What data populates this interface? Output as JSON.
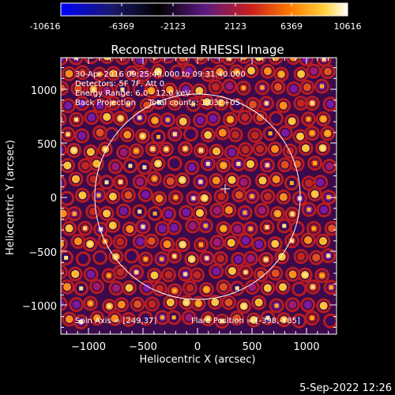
{
  "colorbar": {
    "ticks": [
      "-10616",
      "-6369",
      "-2123",
      "2123",
      "6369",
      "10616"
    ],
    "colors": [
      "#0000ff",
      "#1a1a6a",
      "#000000",
      "#5a1a80",
      "#c81e1e",
      "#ff7a00",
      "#ffd23c",
      "#ffffff"
    ]
  },
  "image": {
    "title": "Reconstructed RHESSI Image",
    "info_lines": [
      "30-Apr-2016 09:25:40.000 to 09:31:40.000",
      "Detectors: 5F 7F, Att 0",
      "Energy Range: 6.0 - 12.0 keV",
      "Back Projection     Total counts: 1.03E+05"
    ],
    "spin_axis": "Spin Axis = [249,37]",
    "flare_position": "Flare Position = [-398,-785]",
    "timestamp": "5-Sep-2022 12:26"
  },
  "chart_data": {
    "type": "heatmap",
    "title": "Reconstructed RHESSI Image",
    "xlabel": "Heliocentric X (arcsec)",
    "ylabel": "Heliocentric Y (arcsec)",
    "xlim": [
      -1280,
      1280
    ],
    "ylim": [
      -1280,
      1280
    ],
    "xticks": [
      -1000,
      -500,
      0,
      500,
      1000
    ],
    "yticks": [
      -1000,
      -500,
      0,
      500,
      1000
    ],
    "x_tick_labels": [
      "−1000",
      "−500",
      "0",
      "500",
      "1000"
    ],
    "y_tick_labels": [
      "−1000",
      "−500",
      "0",
      "500",
      "1000"
    ],
    "solar_disk_radius": 950,
    "solar_disk_center": [
      0,
      0
    ],
    "marker_position": [
      249,
      37
    ],
    "colorbar_range": [
      -10616,
      10616
    ]
  }
}
